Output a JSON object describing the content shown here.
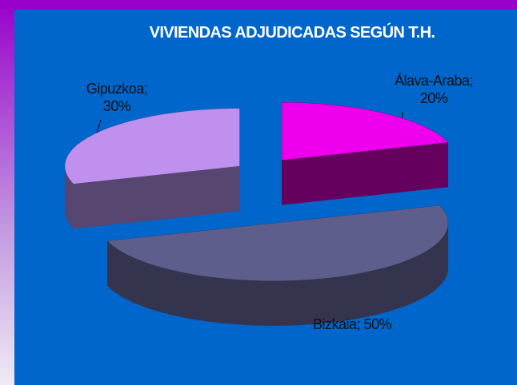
{
  "chart_data": {
    "type": "pie",
    "title": "VIVIENDAS ADJUDICADAS SEGÚN T.H.",
    "values": [
      20,
      50,
      30
    ],
    "value_labels": [
      "Álava-Araba; 20%",
      "Bizkaia; 50%",
      "Gipuzkoa; 30%"
    ],
    "colors": [
      "#ee00ee",
      "#5e5e8c",
      "#c090ee"
    ],
    "side_colors": [
      "#66005e",
      "#34344e",
      "#564670"
    ],
    "start_angle": -90,
    "direction": "clockwise",
    "exploded": true,
    "three_d": true
  }
}
